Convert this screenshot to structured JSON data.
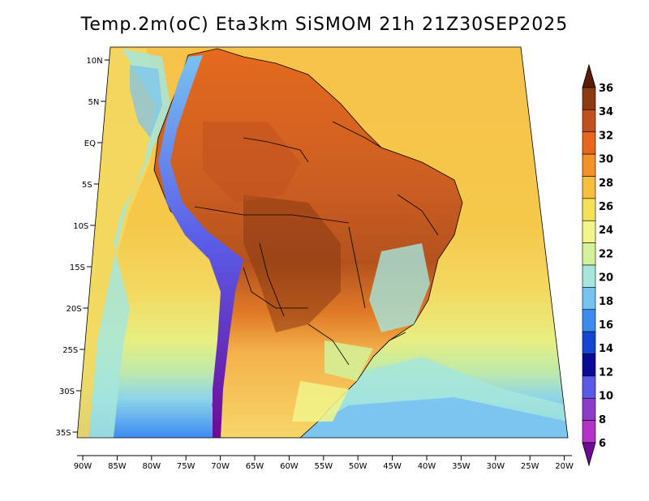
{
  "title": "Temp.2m(oC) Eta3km SiSMOM 21h 21Z30SEP2025",
  "lat_ticks": [
    "10N",
    "5N",
    "EQ",
    "5S",
    "10S",
    "15S",
    "20S",
    "25S",
    "30S",
    "35S"
  ],
  "lon_ticks": [
    "90W",
    "85W",
    "80W",
    "75W",
    "70W",
    "65W",
    "60W",
    "55W",
    "50W",
    "45W",
    "40W",
    "35W",
    "30W",
    "25W",
    "20W"
  ],
  "colorbar": {
    "labels": [
      "36",
      "34",
      "32",
      "30",
      "28",
      "26",
      "24",
      "22",
      "20",
      "18",
      "16",
      "14",
      "12",
      "10",
      "8",
      "6"
    ],
    "colors": [
      "#5a1e08",
      "#8b3a12",
      "#c0501e",
      "#e8661e",
      "#f4922a",
      "#f7bf3c",
      "#f5e05a",
      "#f1f58a",
      "#d2f29a",
      "#a6e6dc",
      "#78c2f2",
      "#3c8cf0",
      "#1446d2",
      "#0a0a96",
      "#5a5ae6",
      "#8c3cc8",
      "#b432c8",
      "#6e0a96"
    ],
    "note": "top triangle = >36, bottom triangle = <6"
  },
  "map": {
    "region": "South America",
    "variable": "2 m air temperature (degC)",
    "ocean_color_north": "#f5c84a",
    "ocean_color_south": "#7fc8f0",
    "land_hot_color": "#c85a1e",
    "andes_color": "#6e1496"
  }
}
